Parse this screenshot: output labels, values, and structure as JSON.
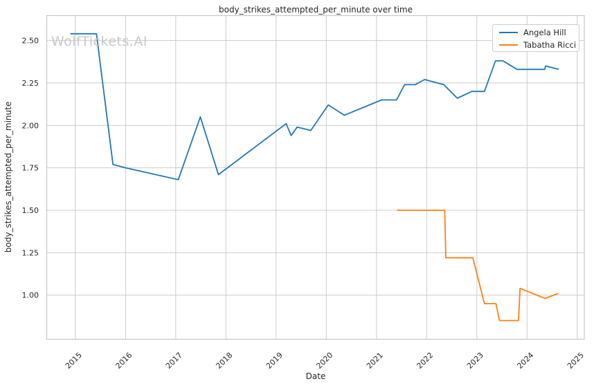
{
  "watermark": {
    "text": "WolfTickets.AI"
  },
  "chart_data": {
    "type": "line",
    "title": "body_strikes_attempted_per_minute over time",
    "xlabel": "Date",
    "ylabel": "body_strikes_attempted_per_minute",
    "x_unit": "decimal_year",
    "xlim": [
      2014.43,
      2025.14
    ],
    "ylim": [
      0.74,
      2.647
    ],
    "xticks": [
      2015,
      2016,
      2017,
      2018,
      2019,
      2020,
      2021,
      2022,
      2023,
      2024,
      2025
    ],
    "xtick_labels": [
      "2015",
      "2016",
      "2017",
      "2018",
      "2019",
      "2020",
      "2021",
      "2022",
      "2023",
      "2024",
      "2025"
    ],
    "yticks": [
      1.0,
      1.25,
      1.5,
      1.75,
      2.0,
      2.25,
      2.5
    ],
    "ytick_labels": [
      "1.00",
      "1.25",
      "1.50",
      "1.75",
      "2.00",
      "2.25",
      "2.50"
    ],
    "grid": true,
    "grid_color": "#cccccc",
    "spine_color": "#c7c7c7",
    "text_color": "#262626",
    "legend_position": "upper right",
    "series": [
      {
        "name": "Angela Hill",
        "color": "#1f77b4",
        "points": [
          [
            2014.9,
            2.54
          ],
          [
            2015.42,
            2.54
          ],
          [
            2015.75,
            1.77
          ],
          [
            2016.0,
            1.75
          ],
          [
            2017.05,
            1.68
          ],
          [
            2017.49,
            2.05
          ],
          [
            2017.85,
            1.71
          ],
          [
            2019.2,
            2.01
          ],
          [
            2019.3,
            1.94
          ],
          [
            2019.42,
            1.99
          ],
          [
            2019.69,
            1.97
          ],
          [
            2020.04,
            2.12
          ],
          [
            2020.36,
            2.06
          ],
          [
            2021.1,
            2.15
          ],
          [
            2021.4,
            2.15
          ],
          [
            2021.56,
            2.24
          ],
          [
            2021.77,
            2.24
          ],
          [
            2021.96,
            2.27
          ],
          [
            2022.34,
            2.24
          ],
          [
            2022.61,
            2.16
          ],
          [
            2022.9,
            2.2
          ],
          [
            2023.15,
            2.2
          ],
          [
            2023.37,
            2.38
          ],
          [
            2023.52,
            2.38
          ],
          [
            2023.8,
            2.33
          ],
          [
            2024.35,
            2.33
          ],
          [
            2024.37,
            2.35
          ],
          [
            2024.63,
            2.33
          ]
        ]
      },
      {
        "name": "Tabatha Ricci",
        "color": "#ff7f0e",
        "points": [
          [
            2021.41,
            1.5
          ],
          [
            2022.36,
            1.5
          ],
          [
            2022.38,
            1.22
          ],
          [
            2022.92,
            1.22
          ],
          [
            2023.15,
            0.95
          ],
          [
            2023.38,
            0.95
          ],
          [
            2023.45,
            0.85
          ],
          [
            2023.83,
            0.85
          ],
          [
            2023.86,
            1.04
          ],
          [
            2024.36,
            0.98
          ],
          [
            2024.62,
            1.01
          ]
        ]
      }
    ]
  }
}
